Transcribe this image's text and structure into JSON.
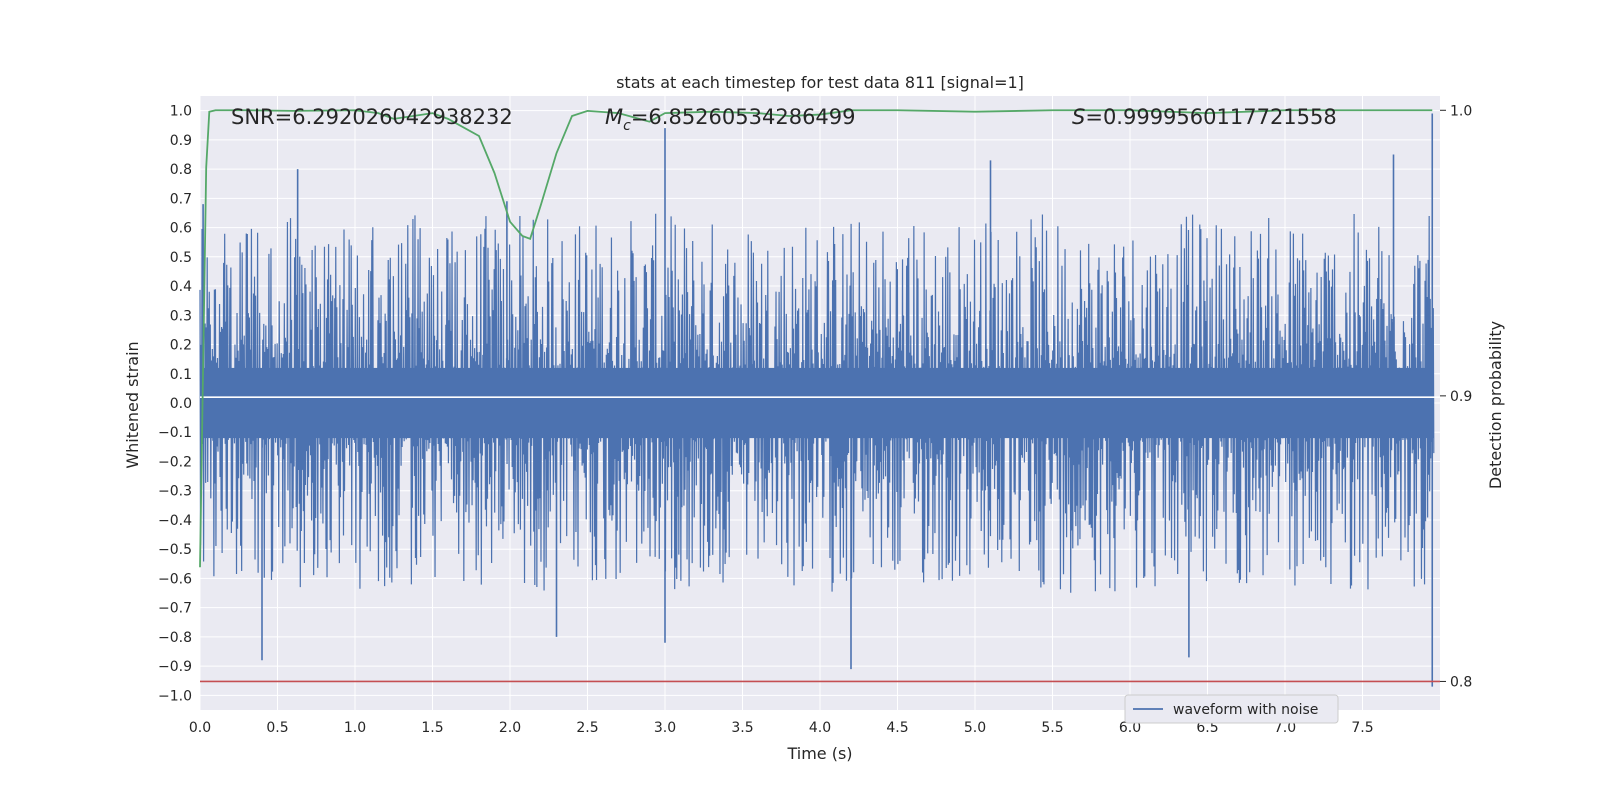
{
  "chart_data": {
    "type": "line",
    "title": "stats at each timestep for test data 811 [signal=1]",
    "xlabel": "Time (s)",
    "ylabel": "Whitened strain",
    "ylabel_right": "Detection probability",
    "xlim": [
      0.0,
      8.0
    ],
    "ylim": [
      -1.05,
      1.05
    ],
    "ylim_right": [
      0.79,
      1.005
    ],
    "xticks": [
      "0.0",
      "0.5",
      "1.0",
      "1.5",
      "2.0",
      "2.5",
      "3.0",
      "3.5",
      "4.0",
      "4.5",
      "5.0",
      "5.5",
      "6.0",
      "6.5",
      "7.0",
      "7.5"
    ],
    "yticks": [
      "1.0",
      "0.9",
      "0.8",
      "0.7",
      "0.6",
      "0.5",
      "0.4",
      "0.3",
      "0.2",
      "0.1",
      "0.0",
      "-0.1",
      "-0.2",
      "-0.3",
      "-0.4",
      "-0.5",
      "-0.6",
      "-0.7",
      "-0.8",
      "-0.9",
      "-1.0"
    ],
    "yticks_right": [
      "1.0",
      "0.9",
      "0.8"
    ],
    "grid": true,
    "legend_placement": "lower-right",
    "annotations": {
      "snr": "SNR=6.292026042938232",
      "mc_symbol": "M",
      "mc_sub": "c",
      "mc_value": "=6.85260534286499",
      "s_symbol": "S",
      "s_value": "=0.9999560117721558"
    },
    "series": [
      {
        "name": "waveform with noise",
        "axis": "left",
        "color": "#4c72b0",
        "description_of_values": "dense noise roughly within ±0.5 with spikes",
        "peaks": [
          {
            "x": 0.02,
            "y": 0.68
          },
          {
            "x": 0.4,
            "y": -0.88
          },
          {
            "x": 0.63,
            "y": 0.8
          },
          {
            "x": 1.98,
            "y": 0.69
          },
          {
            "x": 2.3,
            "y": -0.8
          },
          {
            "x": 3.0,
            "y": 0.94
          },
          {
            "x": 3.0,
            "y": -0.82
          },
          {
            "x": 4.2,
            "y": -0.91
          },
          {
            "x": 5.1,
            "y": 0.83
          },
          {
            "x": 6.38,
            "y": -0.87
          },
          {
            "x": 7.7,
            "y": 0.85
          },
          {
            "x": 7.95,
            "y": 0.99
          },
          {
            "x": 7.95,
            "y": -0.97
          }
        ]
      },
      {
        "name": "",
        "axis": "right",
        "color": "#55a868",
        "x": [
          0.0,
          0.04,
          0.06,
          0.1,
          0.3,
          0.6,
          1.0,
          1.15,
          1.25,
          1.5,
          1.6,
          1.8,
          1.9,
          2.0,
          2.08,
          2.13,
          2.2,
          2.3,
          2.4,
          2.5,
          2.7,
          2.9,
          3.0,
          3.3,
          3.6,
          3.8,
          4.0,
          4.2,
          4.5,
          5.0,
          5.5,
          6.0,
          6.5,
          7.0,
          7.5,
          7.95
        ],
        "y": [
          0.84,
          0.98,
          0.9995,
          1.0,
          1.0,
          0.9998,
          1.0,
          0.999,
          0.997,
          0.999,
          0.997,
          0.991,
          0.978,
          0.961,
          0.956,
          0.955,
          0.967,
          0.985,
          0.998,
          0.9998,
          0.999,
          0.996,
          0.999,
          0.9995,
          0.999,
          0.998,
          0.9985,
          1.0,
          1.0,
          0.9995,
          1.0,
          1.0,
          0.999,
          1.0,
          1.0,
          1.0
        ]
      },
      {
        "name": "",
        "axis": "right",
        "color": "#c44e52",
        "x": [
          0.0,
          8.0
        ],
        "y": [
          0.8,
          0.8
        ]
      }
    ],
    "reference_line": {
      "axis": "left",
      "y": 0.02,
      "color": "#ffffff"
    }
  }
}
